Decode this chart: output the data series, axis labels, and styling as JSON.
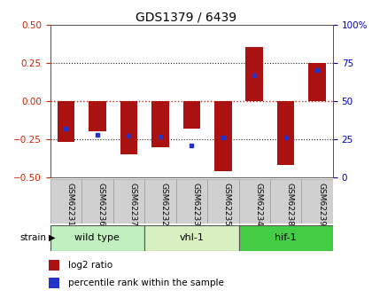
{
  "title": "GDS1379 / 6439",
  "samples": [
    "GSM62231",
    "GSM62236",
    "GSM62237",
    "GSM62232",
    "GSM62233",
    "GSM62235",
    "GSM62234",
    "GSM62238",
    "GSM62239"
  ],
  "log2_bottom": [
    -0.27,
    -0.2,
    -0.35,
    -0.3,
    -0.18,
    -0.46,
    0.0,
    -0.42,
    0.0
  ],
  "log2_top": [
    0.0,
    0.0,
    0.0,
    0.0,
    0.0,
    0.0,
    0.35,
    0.0,
    0.25
  ],
  "percentile_rank_pct": [
    32,
    28,
    27.5,
    27,
    21,
    26,
    67,
    26,
    70
  ],
  "groups": [
    {
      "label": "wild type",
      "start": 0,
      "end": 3,
      "color": "#c0f0c0"
    },
    {
      "label": "vhl-1",
      "start": 3,
      "end": 6,
      "color": "#d8f0c0"
    },
    {
      "label": "hif-1",
      "start": 6,
      "end": 9,
      "color": "#44cc44"
    }
  ],
  "ylim": [
    -0.5,
    0.5
  ],
  "yticks": [
    -0.5,
    -0.25,
    0.0,
    0.25,
    0.5
  ],
  "right_yticks": [
    0,
    25,
    50,
    75,
    100
  ],
  "bar_color": "#aa1111",
  "dot_color": "#2233cc",
  "bg_color": "#ffffff",
  "grid_color": "#222222",
  "zero_line_color": "#cc2222",
  "tick_color_left": "#cc2200",
  "tick_color_right": "#0000cc",
  "label_bg": "#d0d0d0",
  "label_border": "#999999"
}
